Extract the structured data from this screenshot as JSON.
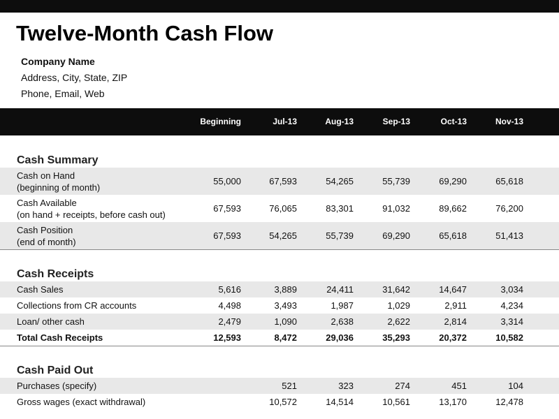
{
  "title": "Twelve-Month Cash Flow",
  "company": {
    "name": "Company Name",
    "address": "Address, City, State, ZIP",
    "contact": "Phone, Email, Web"
  },
  "columns": [
    "Beginning",
    "Jul-13",
    "Aug-13",
    "Sep-13",
    "Oct-13",
    "Nov-13"
  ],
  "sections": [
    {
      "title": "Cash Summary",
      "rows": [
        {
          "label": "Cash on Hand",
          "sublabel": "(beginning of month)",
          "values": [
            "55,000",
            "67,593",
            "54,265",
            "55,739",
            "69,290",
            "65,618"
          ]
        },
        {
          "label": "Cash Available",
          "sublabel": "(on hand + receipts, before cash out)",
          "values": [
            "67,593",
            "76,065",
            "83,301",
            "91,032",
            "89,662",
            "76,200"
          ]
        },
        {
          "label": "Cash Position",
          "sublabel": "(end of month)",
          "values": [
            "67,593",
            "54,265",
            "55,739",
            "69,290",
            "65,618",
            "51,413"
          ]
        }
      ]
    },
    {
      "title": "Cash Receipts",
      "rows": [
        {
          "label": "Cash Sales",
          "values": [
            "5,616",
            "3,889",
            "24,411",
            "31,642",
            "14,647",
            "3,034"
          ]
        },
        {
          "label": "Collections from CR accounts",
          "values": [
            "4,498",
            "3,493",
            "1,987",
            "1,029",
            "2,911",
            "4,234"
          ]
        },
        {
          "label": "Loan/ other cash",
          "values": [
            "2,479",
            "1,090",
            "2,638",
            "2,622",
            "2,814",
            "3,314"
          ]
        },
        {
          "label": "Total Cash Receipts",
          "total": true,
          "values": [
            "12,593",
            "8,472",
            "29,036",
            "35,293",
            "20,372",
            "10,582"
          ]
        }
      ]
    },
    {
      "title": "Cash Paid Out",
      "rows": [
        {
          "label": "Purchases (specify)",
          "values": [
            "",
            "521",
            "323",
            "274",
            "451",
            "104"
          ]
        },
        {
          "label": "Gross wages (exact withdrawal)",
          "values": [
            "",
            "10,572",
            "14,514",
            "10,561",
            "13,170",
            "12,478"
          ]
        }
      ]
    }
  ]
}
